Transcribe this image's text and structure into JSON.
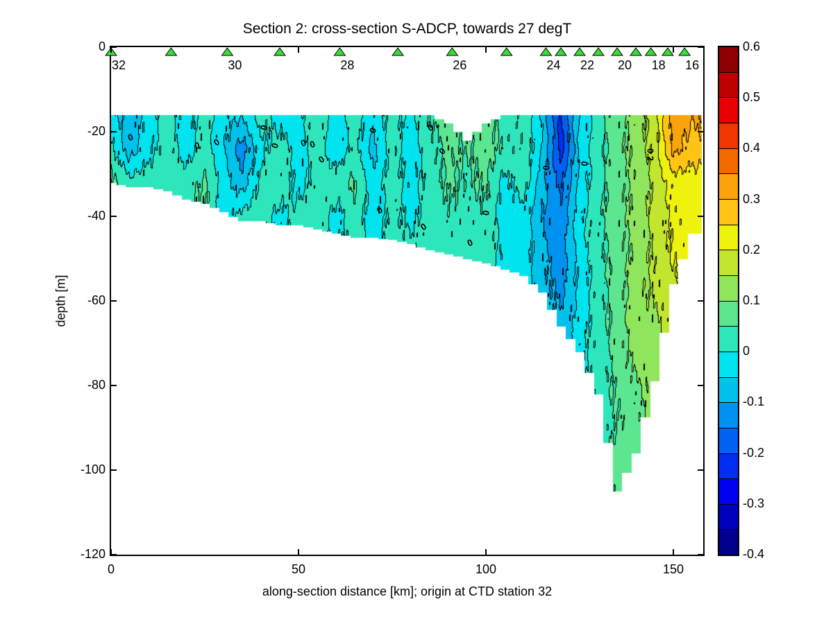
{
  "title": "Section 2: cross-section S-ADCP, towards 27 degT",
  "axes": {
    "xlabel": "along-section distance [km]; origin at CTD station 32",
    "ylabel": "depth [m]",
    "x_tick_labels": [
      "0",
      "50",
      "100",
      "150"
    ],
    "x_tick_km": [
      0,
      50,
      100,
      150
    ],
    "y_tick_labels": [
      "0",
      "-20",
      "-40",
      "-60",
      "-80",
      "-100",
      "-120"
    ],
    "y_tick_m": [
      0,
      -20,
      -40,
      -60,
      -80,
      -100,
      -120
    ],
    "x_range_km": [
      0,
      158
    ],
    "y_range_m": [
      -120,
      0
    ]
  },
  "stations": {
    "marker": "triangle-icon",
    "marker_color": "#33E033",
    "marker_edge": "#000000",
    "positions_km": [
      0,
      16,
      31,
      45,
      61,
      76.5,
      91,
      105.5,
      116,
      120,
      125,
      130,
      135,
      140,
      144,
      148.5,
      153
    ],
    "labels": [
      {
        "text": "32",
        "km": 0
      },
      {
        "text": "30",
        "km": 31
      },
      {
        "text": "28",
        "km": 61
      },
      {
        "text": "26",
        "km": 91
      },
      {
        "text": "24",
        "km": 116
      },
      {
        "text": "22",
        "km": 125
      },
      {
        "text": "20",
        "km": 135
      },
      {
        "text": "18",
        "km": 144
      },
      {
        "text": "16",
        "km": 153
      }
    ]
  },
  "colorbar": {
    "min": -0.4,
    "max": 0.6,
    "step": 0.05,
    "tick_values": [
      0.6,
      0.5,
      0.4,
      0.3,
      0.2,
      0.1,
      0,
      -0.1,
      -0.2,
      -0.3,
      -0.4
    ],
    "tick_labels": [
      "0.6",
      "0.5",
      "0.4",
      "0.3",
      "0.2",
      "0.1",
      "0",
      "-0.1",
      "-0.2",
      "-0.3",
      "-0.4"
    ],
    "colors_low_to_high": [
      "#00008C",
      "#0000BF",
      "#0000F2",
      "#002EF2",
      "#0061F2",
      "#0092F0",
      "#00C2EB",
      "#00E4F0",
      "#2EE6BC",
      "#5CE68F",
      "#8FE65C",
      "#C2E62E",
      "#EFF20D",
      "#FFC414",
      "#FBA30B",
      "#F56A00",
      "#F23600",
      "#E80000",
      "#BF0000",
      "#8F0000"
    ]
  },
  "contour_labels": [
    {
      "text": "0",
      "km": 5.2,
      "depth": -21.3,
      "rot": -20
    },
    {
      "text": "0",
      "km": 23.0,
      "depth": -23.3,
      "rot": -15
    },
    {
      "text": "0",
      "km": 28.1,
      "depth": -22.5,
      "rot": -30
    },
    {
      "text": "0",
      "km": 40.7,
      "depth": -19.0,
      "rot": -75
    },
    {
      "text": "0",
      "km": 43.7,
      "depth": -23.3,
      "rot": -70
    },
    {
      "text": "0",
      "km": 51.3,
      "depth": -22.6,
      "rot": -20
    },
    {
      "text": "0",
      "km": 53.7,
      "depth": -23.0,
      "rot": -20
    },
    {
      "text": "0",
      "km": 56.1,
      "depth": -26.6,
      "rot": -35
    },
    {
      "text": "0",
      "km": 69.8,
      "depth": -19.7,
      "rot": -70
    },
    {
      "text": "0",
      "km": 85.2,
      "depth": -19.0,
      "rot": -25
    },
    {
      "text": "0",
      "km": 88.3,
      "depth": -24.6,
      "rot": -45
    },
    {
      "text": "0",
      "km": 71.7,
      "depth": -38.5,
      "rot": -35
    },
    {
      "text": "0",
      "km": 83.3,
      "depth": -42.5,
      "rot": -30
    },
    {
      "text": "0",
      "km": 95.7,
      "depth": -46.2,
      "rot": -25
    },
    {
      "text": "0",
      "km": 100.0,
      "depth": -39.2,
      "rot": -80
    },
    {
      "text": "0",
      "km": 116.1,
      "depth": -28.5,
      "rot": -85
    },
    {
      "text": "0",
      "km": 126.3,
      "depth": -27.5,
      "rot": -85
    },
    {
      "text": "0.2",
      "km": 143.9,
      "depth": -25.4,
      "rot": 90
    }
  ],
  "chart_data": {
    "type": "heatmap",
    "title": "Section 2: cross-section S-ADCP, towards 27 degT",
    "xlabel": "along-section distance [km]; origin at CTD station 32",
    "ylabel": "depth [m]",
    "levels_step": 0.05,
    "value_range": [
      -0.4,
      0.6
    ],
    "colormap": "jet",
    "x_km": [
      0,
      5,
      10,
      15,
      20,
      25,
      30,
      35,
      40,
      45,
      50,
      55,
      60,
      65,
      70,
      75,
      80,
      85,
      90,
      95,
      100,
      105,
      110,
      115,
      120,
      125,
      130,
      135,
      140,
      145,
      150,
      155
    ],
    "z_m": [
      -16,
      -24,
      -32,
      -40,
      -48,
      -56,
      -64,
      -72,
      -80,
      -88,
      -96,
      -104
    ],
    "top_depth_m": [
      16,
      16,
      16,
      16,
      16,
      16,
      16,
      16,
      16,
      16,
      16,
      16,
      16,
      16,
      16,
      16,
      16,
      16,
      18,
      22,
      18,
      16,
      16,
      16,
      16,
      16,
      16,
      16,
      16,
      16,
      16,
      16
    ],
    "bottom_depth_m": [
      32,
      33,
      33,
      34,
      36,
      37,
      39,
      41,
      41,
      42,
      42,
      43,
      44,
      45,
      45,
      45.5,
      46.5,
      48,
      49,
      50,
      51,
      52.5,
      54,
      58,
      66,
      72,
      82,
      105,
      96,
      79,
      56,
      44
    ],
    "values": [
      [
        -0.03,
        -0.08,
        -0.03,
        0.03,
        -0.03,
        0.03,
        -0.04,
        -0.04,
        0.03,
        -0.03,
        -0.02,
        0.04,
        -0.03,
        0.03,
        -0.04,
        0.03,
        -0.02,
        0.05,
        0.07,
        null,
        0.07,
        0.03,
        0.04,
        -0.06,
        -0.21,
        -0.04,
        0.03,
        0.08,
        0.12,
        0.18,
        0.33,
        0.31
      ],
      [
        0.02,
        -0.08,
        -0.02,
        0.03,
        -0.03,
        0.02,
        -0.04,
        -0.13,
        -0.02,
        0.03,
        -0.03,
        0.03,
        -0.04,
        0.02,
        -0.07,
        0.02,
        -0.03,
        0.03,
        0.06,
        0.05,
        0.07,
        0.04,
        0.04,
        -0.05,
        -0.23,
        -0.04,
        0.03,
        0.08,
        0.12,
        0.17,
        0.32,
        0.28
      ],
      [
        0.06,
        0.02,
        0.03,
        0.02,
        0.03,
        0.06,
        -0.03,
        -0.08,
        0.02,
        0.04,
        -0.02,
        0.02,
        0.03,
        0.06,
        -0.03,
        0.03,
        -0.02,
        0.02,
        0.06,
        0.04,
        0.06,
        -0.02,
        0.03,
        -0.08,
        -0.16,
        -0.03,
        0.03,
        0.08,
        0.11,
        0.16,
        0.22,
        0.22
      ],
      [
        null,
        null,
        null,
        null,
        null,
        null,
        null,
        0.02,
        0.03,
        -0.02,
        0.02,
        0.03,
        -0.02,
        0.03,
        -0.03,
        0.02,
        -0.02,
        0.03,
        0.04,
        0.03,
        0.04,
        -0.03,
        -0.02,
        -0.1,
        -0.14,
        -0.02,
        0.04,
        0.08,
        0.12,
        0.17,
        0.21,
        0.22
      ],
      [
        null,
        null,
        null,
        null,
        null,
        null,
        null,
        null,
        null,
        null,
        null,
        null,
        null,
        null,
        null,
        null,
        0.02,
        0.02,
        0.03,
        0.03,
        0.03,
        -0.02,
        -0.02,
        -0.09,
        -0.13,
        -0.02,
        0.03,
        0.08,
        0.11,
        0.16,
        0.21,
        null
      ],
      [
        null,
        null,
        null,
        null,
        null,
        null,
        null,
        null,
        null,
        null,
        null,
        null,
        null,
        null,
        null,
        null,
        null,
        null,
        null,
        null,
        null,
        null,
        null,
        -0.08,
        -0.12,
        -0.04,
        0.03,
        0.07,
        0.13,
        0.16,
        0.18,
        null
      ],
      [
        null,
        null,
        null,
        null,
        null,
        null,
        null,
        null,
        null,
        null,
        null,
        null,
        null,
        null,
        null,
        null,
        null,
        null,
        null,
        null,
        null,
        null,
        null,
        null,
        -0.09,
        -0.03,
        0.03,
        0.07,
        0.13,
        0.14,
        null,
        null
      ],
      [
        null,
        null,
        null,
        null,
        null,
        null,
        null,
        null,
        null,
        null,
        null,
        null,
        null,
        null,
        null,
        null,
        null,
        null,
        null,
        null,
        null,
        null,
        null,
        null,
        null,
        -0.01,
        0.02,
        0.07,
        0.12,
        0.12,
        null,
        null
      ],
      [
        null,
        null,
        null,
        null,
        null,
        null,
        null,
        null,
        null,
        null,
        null,
        null,
        null,
        null,
        null,
        null,
        null,
        null,
        null,
        null,
        null,
        null,
        null,
        null,
        null,
        null,
        0.02,
        0.06,
        0.09,
        null,
        null,
        null
      ],
      [
        null,
        null,
        null,
        null,
        null,
        null,
        null,
        null,
        null,
        null,
        null,
        null,
        null,
        null,
        null,
        null,
        null,
        null,
        null,
        null,
        null,
        null,
        null,
        null,
        null,
        null,
        null,
        0.05,
        0.08,
        null,
        null,
        null
      ],
      [
        null,
        null,
        null,
        null,
        null,
        null,
        null,
        null,
        null,
        null,
        null,
        null,
        null,
        null,
        null,
        null,
        null,
        null,
        null,
        null,
        null,
        null,
        null,
        null,
        null,
        null,
        null,
        0.07,
        0.08,
        null,
        null,
        null
      ],
      [
        null,
        null,
        null,
        null,
        null,
        null,
        null,
        null,
        null,
        null,
        null,
        null,
        null,
        null,
        null,
        null,
        null,
        null,
        null,
        null,
        null,
        null,
        null,
        null,
        null,
        null,
        null,
        0.07,
        null,
        null,
        null,
        null
      ]
    ]
  }
}
